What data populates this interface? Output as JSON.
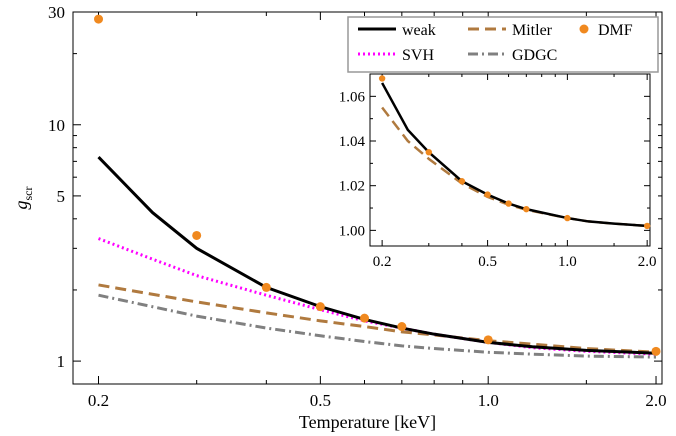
{
  "chart_data": [
    {
      "type": "line",
      "xlabel": "Temperature [keV]",
      "ylabel": "g",
      "ylabel_sub": "scr",
      "x_scale": "log",
      "y_scale": "log",
      "xlim": [
        0.18,
        2.05
      ],
      "ylim": [
        0.8,
        30
      ],
      "x_ticks": [
        0.2,
        0.5,
        1.0,
        2.0
      ],
      "x_tick_labels": [
        "0.2",
        "0.5",
        "1.0",
        "2.0"
      ],
      "y_ticks": [
        1,
        5,
        10,
        30
      ],
      "y_tick_labels": [
        "1",
        "5",
        "10",
        "30"
      ],
      "legend_position": "top-right",
      "series": [
        {
          "name": "weak",
          "style": "solid",
          "color": "#000000",
          "x": [
            0.2,
            0.25,
            0.3,
            0.4,
            0.5,
            0.6,
            0.7,
            0.8,
            1.0,
            1.2,
            1.5,
            2.0
          ],
          "y": [
            7.3,
            4.25,
            3.0,
            2.05,
            1.7,
            1.5,
            1.38,
            1.3,
            1.2,
            1.15,
            1.11,
            1.08
          ]
        },
        {
          "name": "Mitler",
          "style": "dashed",
          "color": "#b07a3f",
          "x": [
            0.2,
            0.3,
            0.4,
            0.5,
            0.6,
            0.7,
            0.8,
            1.0,
            1.2,
            1.5,
            2.0
          ],
          "y": [
            2.1,
            1.78,
            1.6,
            1.48,
            1.4,
            1.33,
            1.29,
            1.22,
            1.18,
            1.13,
            1.09
          ]
        },
        {
          "name": "DMF",
          "style": "points",
          "color": "#f0891f",
          "x": [
            0.2,
            0.3,
            0.4,
            0.5,
            0.6,
            0.7,
            1.0,
            2.0
          ],
          "y": [
            28.0,
            3.4,
            2.05,
            1.7,
            1.52,
            1.4,
            1.23,
            1.1
          ]
        },
        {
          "name": "SVH",
          "style": "dotted",
          "color": "#ff00ff",
          "x": [
            0.2,
            0.25,
            0.3,
            0.4,
            0.5,
            0.6,
            0.7,
            0.8,
            1.0,
            1.2,
            1.5,
            2.0
          ],
          "y": [
            3.3,
            2.7,
            2.3,
            1.9,
            1.65,
            1.48,
            1.38,
            1.3,
            1.2,
            1.14,
            1.1,
            1.07
          ]
        },
        {
          "name": "GDGC",
          "style": "dashdot",
          "color": "#808080",
          "x": [
            0.2,
            0.3,
            0.4,
            0.5,
            0.6,
            0.7,
            0.8,
            1.0,
            1.2,
            1.5,
            2.0
          ],
          "y": [
            1.9,
            1.55,
            1.38,
            1.28,
            1.21,
            1.16,
            1.13,
            1.09,
            1.07,
            1.05,
            1.04
          ]
        }
      ]
    },
    {
      "type": "line",
      "x_scale": "log",
      "y_scale": "linear",
      "xlim": [
        0.18,
        2.05
      ],
      "ylim": [
        0.993,
        1.07
      ],
      "x_ticks": [
        0.2,
        0.5,
        1.0,
        2.0
      ],
      "x_tick_labels": [
        "0.2",
        "0.5",
        "1.0",
        "2.0"
      ],
      "y_ticks": [
        1.0,
        1.02,
        1.04,
        1.06
      ],
      "y_tick_labels": [
        "1.00",
        "1.02",
        "1.04",
        "1.06"
      ],
      "series": [
        {
          "style": "solid",
          "color": "#000000",
          "x": [
            0.2,
            0.25,
            0.3,
            0.4,
            0.5,
            0.6,
            0.7,
            0.8,
            1.0,
            1.2,
            1.5,
            2.0
          ],
          "y": [
            1.066,
            1.045,
            1.035,
            1.022,
            1.016,
            1.012,
            1.0095,
            1.008,
            1.0055,
            1.004,
            1.003,
            1.002
          ]
        },
        {
          "style": "dashed",
          "color": "#b07a3f",
          "x": [
            0.2,
            0.25,
            0.3,
            0.4,
            0.5,
            0.6,
            0.7,
            0.8,
            1.0,
            1.2,
            1.5,
            2.0
          ],
          "y": [
            1.055,
            1.04,
            1.032,
            1.021,
            1.015,
            1.0115,
            1.0092,
            1.0078,
            1.0055,
            1.004,
            1.003,
            1.002
          ]
        },
        {
          "style": "points",
          "color": "#f0891f",
          "x": [
            0.2,
            0.3,
            0.4,
            0.5,
            0.6,
            0.7,
            1.0,
            2.0
          ],
          "y": [
            1.068,
            1.035,
            1.022,
            1.016,
            1.012,
            1.0095,
            1.0055,
            1.002
          ]
        }
      ]
    }
  ]
}
